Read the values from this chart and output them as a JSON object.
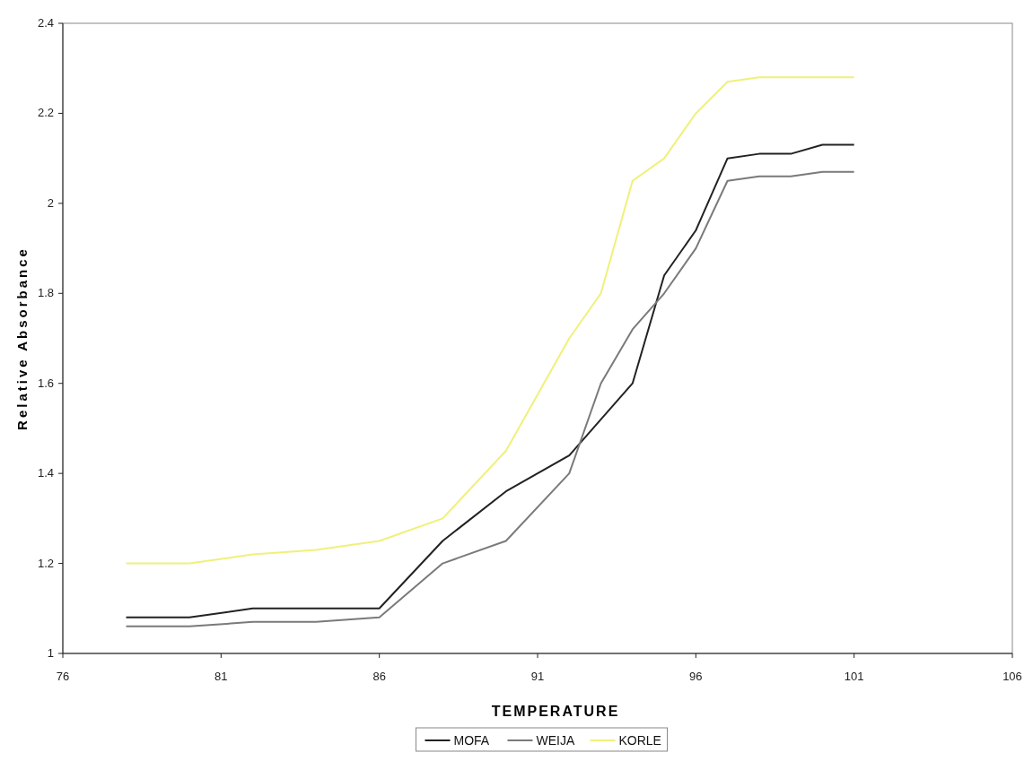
{
  "chart_data": {
    "type": "line",
    "xlabel": "TEMPERATURE",
    "ylabel": "Relative Absorbance",
    "x": [
      78,
      80,
      82,
      84,
      86,
      88,
      90,
      92,
      93,
      94,
      95,
      96,
      97,
      98,
      99,
      100,
      101
    ],
    "xlim": [
      76,
      106
    ],
    "xticks": [
      76,
      81,
      86,
      91,
      96,
      101,
      106
    ],
    "ylim": [
      1,
      2.4
    ],
    "yticks": [
      1,
      1.2,
      1.4,
      1.6,
      1.8,
      2,
      2.2,
      2.4
    ],
    "grid": false,
    "legend": "bottom",
    "marker": "none",
    "line_style": "solid",
    "series": [
      {
        "name": "MOFA",
        "color": "#222222",
        "values": [
          1.08,
          1.08,
          1.1,
          1.1,
          1.1,
          1.25,
          1.36,
          1.44,
          1.52,
          1.6,
          1.84,
          1.94,
          2.1,
          2.11,
          2.11,
          2.13,
          2.13
        ]
      },
      {
        "name": "WEIJA",
        "color": "#7a7a7a",
        "values": [
          1.06,
          1.06,
          1.07,
          1.07,
          1.08,
          1.2,
          1.25,
          1.4,
          1.6,
          1.72,
          1.8,
          1.9,
          2.05,
          2.06,
          2.06,
          2.07,
          2.07
        ]
      },
      {
        "name": "KORLE",
        "color": "#f0f07a",
        "values": [
          1.2,
          1.2,
          1.22,
          1.23,
          1.25,
          1.3,
          1.45,
          1.7,
          1.8,
          2.05,
          2.1,
          2.2,
          2.27,
          2.28,
          2.28,
          2.28,
          2.28
        ]
      }
    ]
  }
}
